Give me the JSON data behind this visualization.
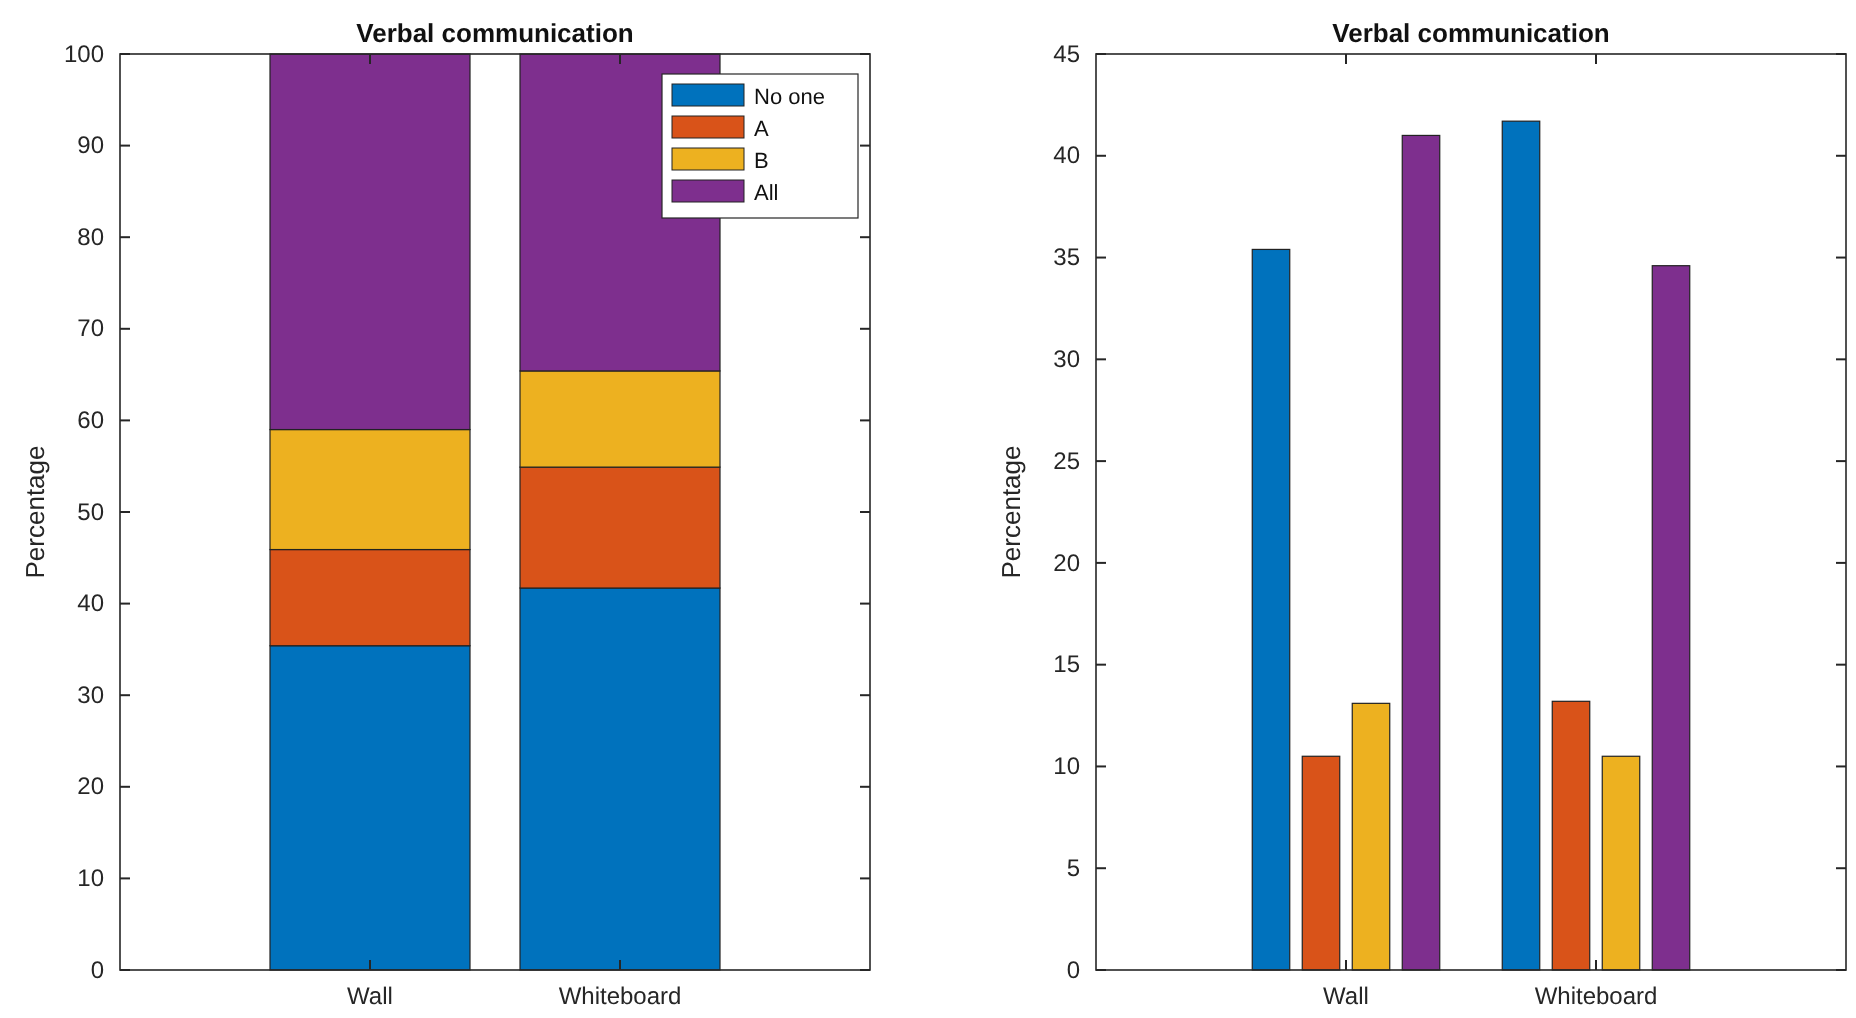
{
  "chart_data": [
    {
      "type": "bar",
      "title": "Verbal communication",
      "ylabel": "Percentage",
      "categories": [
        "Wall",
        "Whiteboard"
      ],
      "stacked": true,
      "legend": "top right",
      "ylim": [
        0,
        100
      ],
      "yticks": [
        0,
        10,
        20,
        30,
        40,
        50,
        60,
        70,
        80,
        90,
        100
      ],
      "series": [
        {
          "name": "No one",
          "color": "#0072bd",
          "values": [
            35.4,
            41.7
          ]
        },
        {
          "name": "A",
          "color": "#d95319",
          "values": [
            10.5,
            13.2
          ]
        },
        {
          "name": "B",
          "color": "#edb120",
          "values": [
            13.1,
            10.5
          ]
        },
        {
          "name": "All",
          "color": "#7e2f8e",
          "values": [
            41.0,
            34.6
          ]
        }
      ]
    },
    {
      "type": "bar",
      "title": "Verbal communication",
      "ylabel": "Percentage",
      "categories": [
        "Wall",
        "Whiteboard"
      ],
      "ylim": [
        0,
        45
      ],
      "yticks": [
        0,
        5,
        10,
        15,
        20,
        25,
        30,
        35,
        40,
        45
      ],
      "series": [
        {
          "color": "#0072bd",
          "values": [
            35.4,
            41.7
          ]
        },
        {
          "color": "#d95319",
          "values": [
            10.5,
            13.2
          ]
        },
        {
          "color": "#edb120",
          "values": [
            13.1,
            10.5
          ]
        },
        {
          "color": "#7e2f8e",
          "values": [
            41.0,
            34.6
          ]
        }
      ]
    }
  ]
}
